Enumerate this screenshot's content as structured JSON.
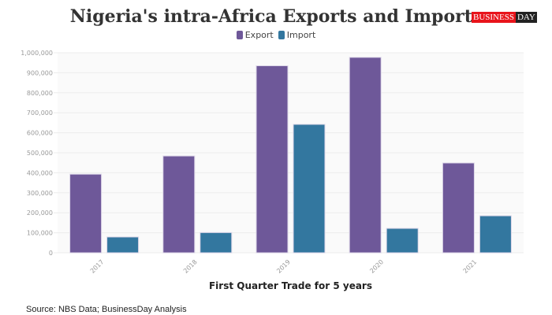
{
  "chart_data": {
    "type": "bar",
    "title": "Nigeria's intra-Africa Exports and Imports",
    "xlabel": "First Quarter Trade for 5 years",
    "ylabel": "",
    "categories": [
      "2017",
      "2018",
      "2019",
      "2020",
      "2021"
    ],
    "series": [
      {
        "name": "Export",
        "color": "#6e5899",
        "values": [
          393000,
          484000,
          935000,
          977000,
          449000
        ]
      },
      {
        "name": "Import",
        "color": "#33779f",
        "values": [
          79000,
          101000,
          642000,
          122000,
          185000
        ]
      }
    ],
    "ylim": [
      0,
      1000000
    ],
    "yticks": [
      "0",
      "100,000",
      "200,000",
      "300,000",
      "400,000",
      "500,000",
      "600,000",
      "700,000",
      "800,000",
      "900,000",
      "1,000,000"
    ],
    "grid": true,
    "legend": "top-center"
  },
  "logo": {
    "left": "BUSINESS",
    "right": "DAY"
  },
  "source": "Source: NBS Data; BusinessDay Analysis"
}
